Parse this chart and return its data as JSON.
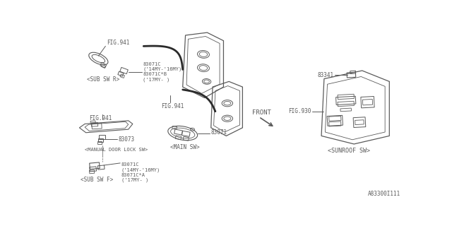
{
  "bg_color": "#ffffff",
  "line_color": "#5a5a5a",
  "text_color": "#5a5a5a",
  "part_number_bottom": "A83300I111",
  "annotations": {
    "fig941": "FIG.941",
    "fig930": "FIG.930",
    "part_83341": "83341",
    "part_83071C_top": "83071C\n('14MY-'16MY)\n83071C*B\n('17MY- )",
    "part_83071": "83071",
    "part_83073": "83073",
    "part_83071C_bot": "83071C\n('14MY-'16MY)\n83071C*A\n('17MY- )",
    "label_sub_sw_r": "<SUB SW R>",
    "label_main_sw": "<MAIN SW>",
    "label_manual_door": "<MANUAL DOOR LOCK SW>",
    "label_sub_sw_f": "<SUB SW F>",
    "label_sunroof_sw": "<SUNROOF SW>",
    "label_front": "FRONT"
  },
  "figsize": [
    6.4,
    3.2
  ],
  "dpi": 100
}
